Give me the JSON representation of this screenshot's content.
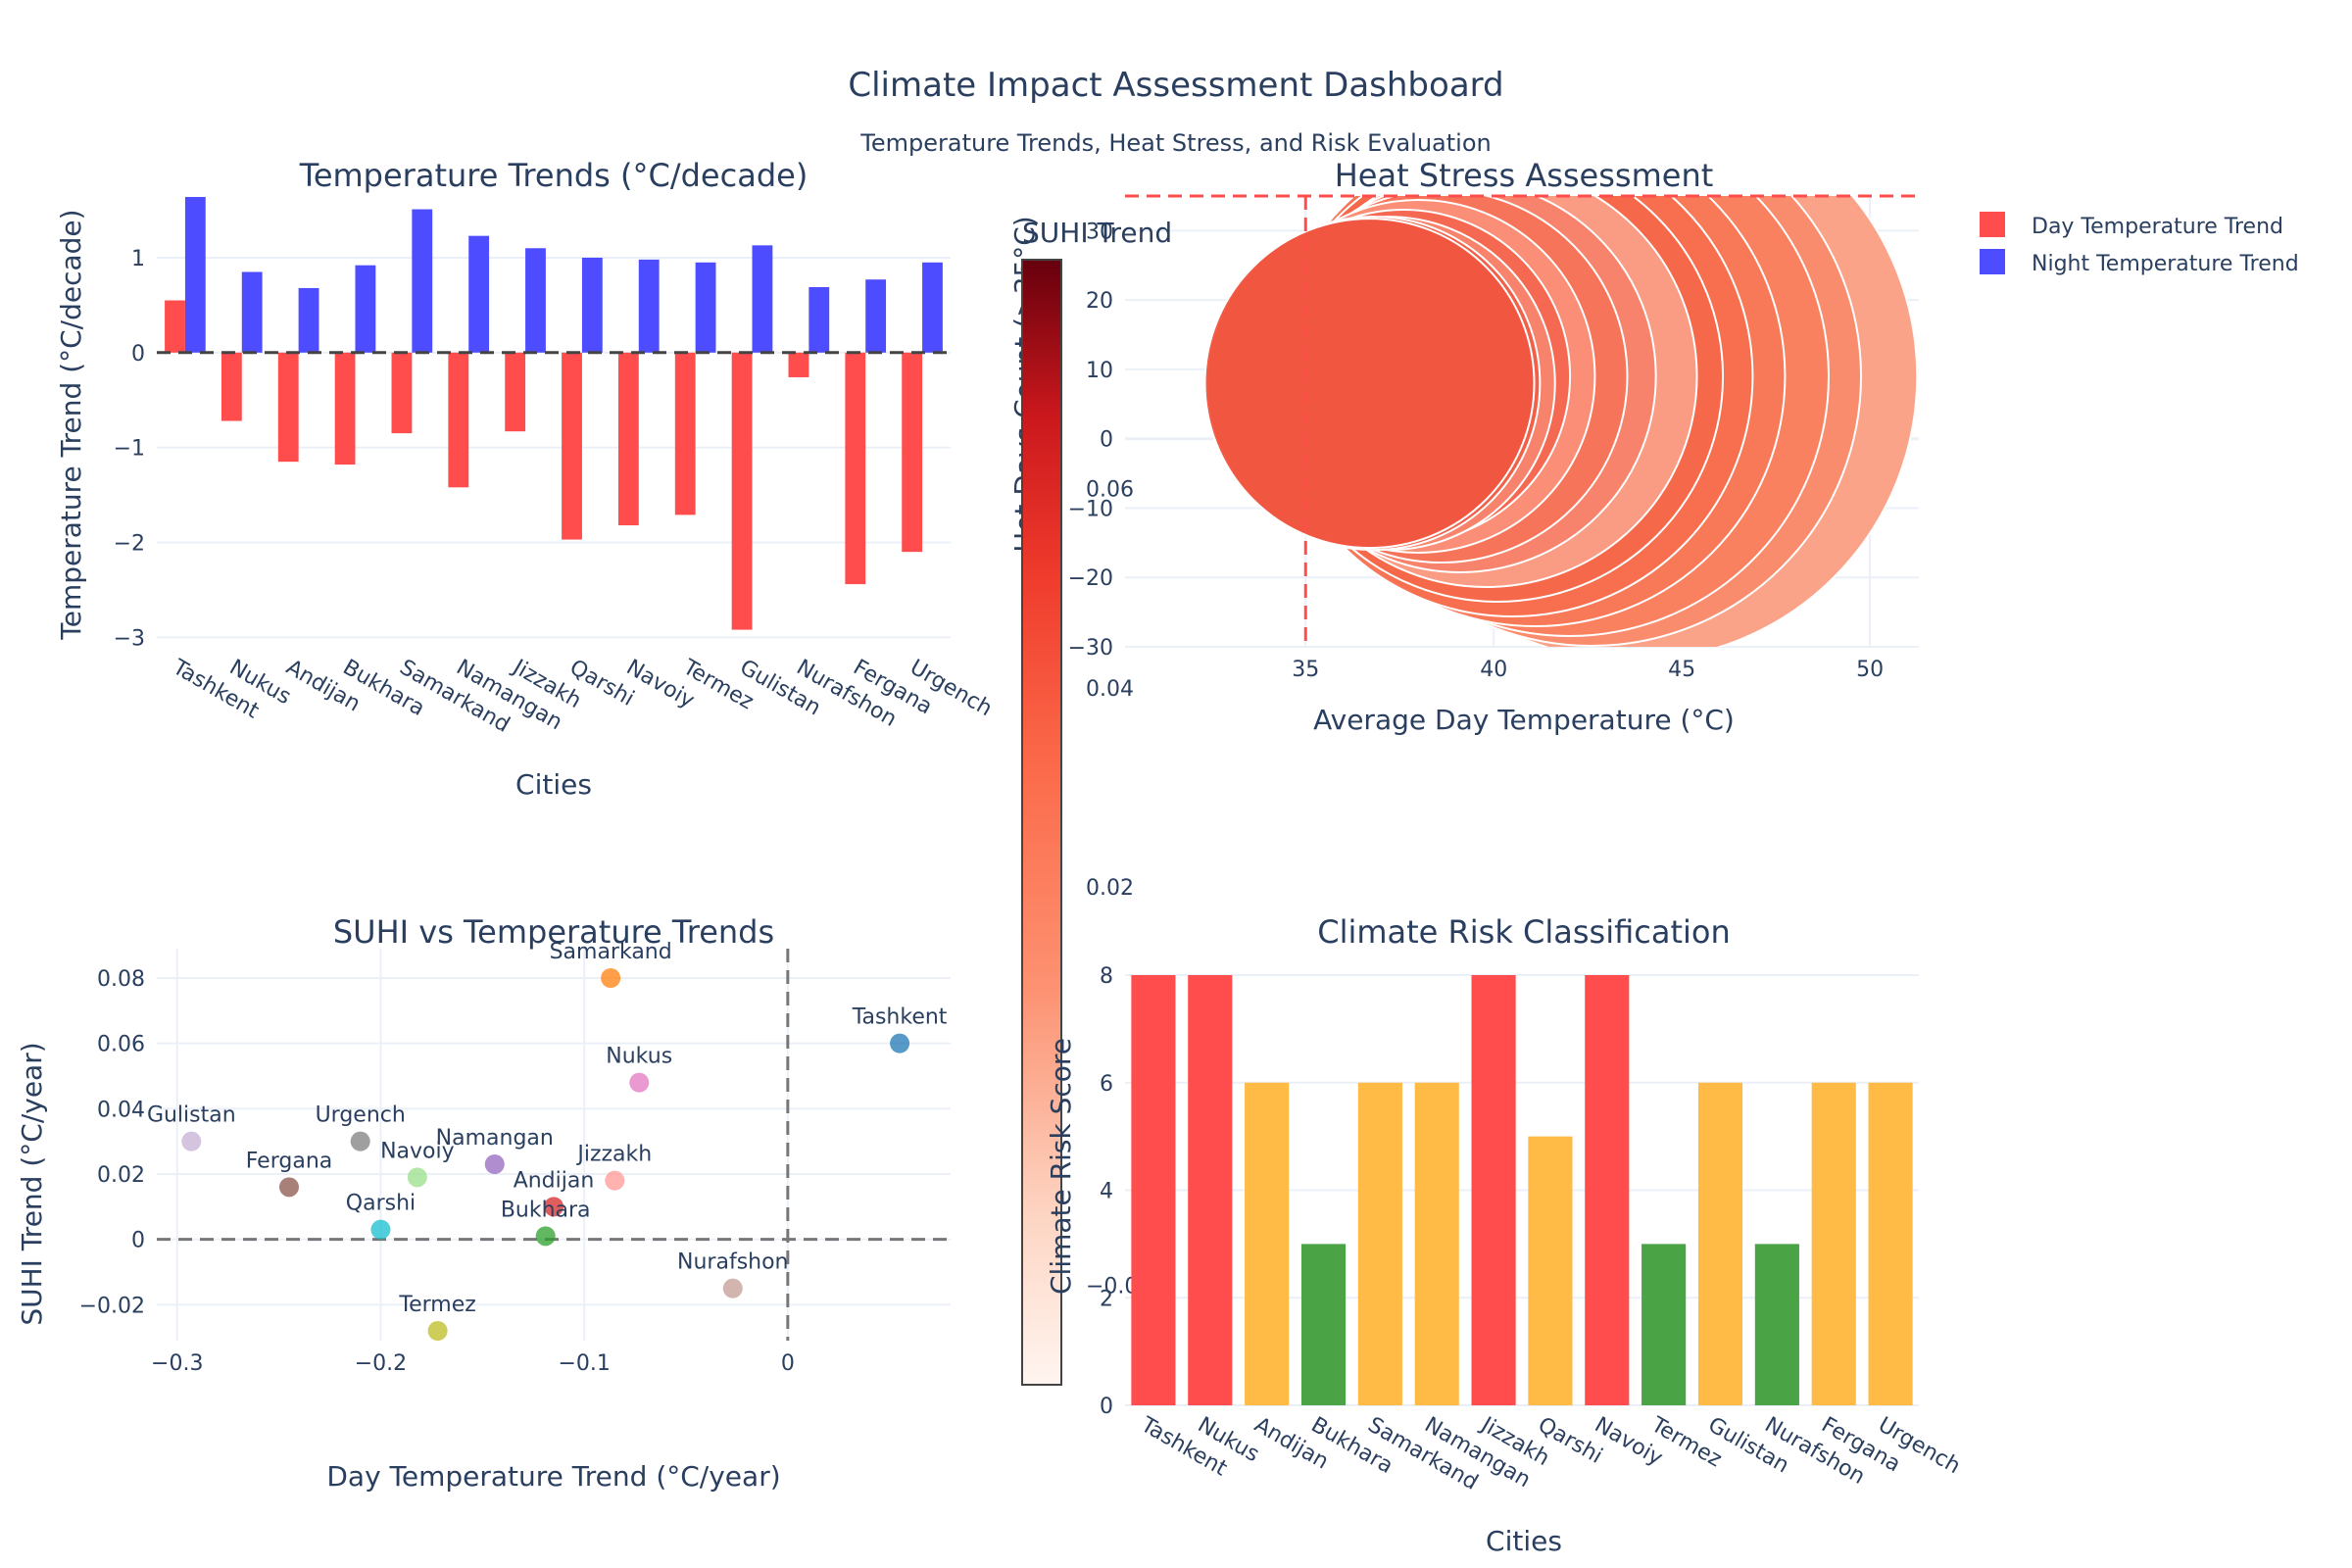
{
  "title": "Climate Impact Assessment Dashboard",
  "subtitle": "Temperature Trends, Heat Stress, and Risk Evaluation",
  "legend": {
    "items": [
      {
        "label": "Day Temperature Trend",
        "color": "#ff4d4d"
      },
      {
        "label": "Night Temperature Trend",
        "color": "#4d4dff"
      }
    ]
  },
  "chart_data": [
    {
      "type": "bar",
      "title": "Temperature Trends (°C/decade)",
      "xlabel": "Cities",
      "ylabel": "Temperature Trend (°C/decade)",
      "ylim": [
        -3.1,
        1.65
      ],
      "yticks": [
        1,
        0,
        -1,
        -2,
        -3
      ],
      "ytick_labels": [
        "1",
        "0",
        "−1",
        "−2",
        "−3"
      ],
      "categories": [
        "Tashkent",
        "Nukus",
        "Andijan",
        "Bukhara",
        "Samarkand",
        "Namangan",
        "Jizzakh",
        "Qarshi",
        "Navoiy",
        "Termez",
        "Gulistan",
        "Nurafshon",
        "Fergana",
        "Urgench"
      ],
      "series": [
        {
          "name": "Day Temperature Trend",
          "color": "#ff4d4d",
          "values": [
            0.55,
            -0.72,
            -1.15,
            -1.18,
            -0.85,
            -1.42,
            -0.83,
            -1.97,
            -1.82,
            -1.71,
            -2.92,
            -0.26,
            -2.44,
            -2.1
          ]
        },
        {
          "name": "Night Temperature Trend",
          "color": "#4d4dff",
          "values": [
            1.64,
            0.85,
            0.68,
            0.92,
            1.51,
            1.23,
            1.1,
            1.0,
            0.98,
            0.95,
            1.13,
            0.69,
            0.77,
            0.95
          ]
        }
      ]
    },
    {
      "type": "scatter",
      "title": "Heat Stress Assessment",
      "xlabel": "Average Day Temperature (°C)",
      "ylabel": "Hot Days Count (>35°C)",
      "xticks": [
        35,
        40,
        45,
        50
      ],
      "yticks": [
        30,
        20,
        10,
        0,
        -10,
        -20,
        -30
      ],
      "ytick_labels": [
        "30",
        "20",
        "10",
        "0",
        "−10",
        "−20",
        "−30"
      ],
      "xlim": [
        30.2,
        51.3
      ],
      "ylim": [
        -30,
        35
      ],
      "threshold_x": 35,
      "threshold_y": 35,
      "points": [
        {
          "x": 43.7,
          "y": 9,
          "r": 290,
          "color": "#fb9e83"
        },
        {
          "x": 42.6,
          "y": 9,
          "r": 275,
          "color": "#fa8b6d"
        },
        {
          "x": 42.0,
          "y": 9,
          "r": 265,
          "color": "#f9815f"
        },
        {
          "x": 41.1,
          "y": 9,
          "r": 255,
          "color": "#f87857"
        },
        {
          "x": 40.5,
          "y": 9,
          "r": 245,
          "color": "#f76f4e"
        },
        {
          "x": 40.1,
          "y": 9,
          "r": 230,
          "color": "#f4684a"
        },
        {
          "x": 39.8,
          "y": 9,
          "r": 215,
          "color": "#fa9f86"
        },
        {
          "x": 39.1,
          "y": 9,
          "r": 200,
          "color": "#f8826a"
        },
        {
          "x": 38.6,
          "y": 9,
          "r": 190,
          "color": "#f57359"
        },
        {
          "x": 38.0,
          "y": 9,
          "r": 180,
          "color": "#fa8f78"
        },
        {
          "x": 37.6,
          "y": 9,
          "r": 170,
          "color": "#f46650"
        },
        {
          "x": 37.2,
          "y": 8,
          "r": 170,
          "color": "#f8856e"
        },
        {
          "x": 36.8,
          "y": 8,
          "r": 170,
          "color": "#f05e48"
        },
        {
          "x": 36.7,
          "y": 8,
          "r": 168,
          "color": "#f05540"
        }
      ]
    },
    {
      "type": "scatter",
      "title": "SUHI vs Temperature Trends",
      "xlabel": "Day Temperature Trend (°C/year)",
      "ylabel": "SUHI Trend (°C/year)",
      "xticks": [
        -0.3,
        -0.2,
        -0.1,
        0
      ],
      "xtick_labels": [
        "−0.3",
        "−0.2",
        "−0.1",
        "0"
      ],
      "yticks": [
        0.08,
        0.06,
        0.04,
        0.02,
        0,
        -0.02
      ],
      "ytick_labels": [
        "0.08",
        "0.06",
        "0.04",
        "0.02",
        "0",
        "−0.02"
      ],
      "xlim": [
        -0.31,
        0.08
      ],
      "ylim": [
        -0.031,
        0.089
      ],
      "points": [
        {
          "label": "Tashkent",
          "x": 0.055,
          "y": 0.06,
          "color": "#1f77b4"
        },
        {
          "label": "Nukus",
          "x": -0.073,
          "y": 0.048,
          "color": "#e377c2"
        },
        {
          "label": "Andijan",
          "x": -0.115,
          "y": 0.01,
          "color": "#d62728"
        },
        {
          "label": "Bukhara",
          "x": -0.119,
          "y": 0.001,
          "color": "#2ca02c"
        },
        {
          "label": "Samarkand",
          "x": -0.087,
          "y": 0.08,
          "color": "#ff7f0e"
        },
        {
          "label": "Namangan",
          "x": -0.144,
          "y": 0.023,
          "color": "#9467bd"
        },
        {
          "label": "Jizzakh",
          "x": -0.085,
          "y": 0.018,
          "color": "#ff9896"
        },
        {
          "label": "Qarshi",
          "x": -0.2,
          "y": 0.003,
          "color": "#17becf"
        },
        {
          "label": "Navoiy",
          "x": -0.182,
          "y": 0.019,
          "color": "#98df8a"
        },
        {
          "label": "Termez",
          "x": -0.172,
          "y": -0.028,
          "color": "#bcbd22"
        },
        {
          "label": "Gulistan",
          "x": -0.293,
          "y": 0.03,
          "color": "#c5b0d5"
        },
        {
          "label": "Nurafshon",
          "x": -0.027,
          "y": -0.015,
          "color": "#c49c94"
        },
        {
          "label": "Fergana",
          "x": -0.245,
          "y": 0.016,
          "color": "#8c564b"
        },
        {
          "label": "Urgench",
          "x": -0.21,
          "y": 0.03,
          "color": "#7f7f7f"
        }
      ]
    },
    {
      "type": "bar",
      "title": "Climate Risk Classification",
      "xlabel": "Cities",
      "ylabel": "Climate Risk Score",
      "ylim": [
        0,
        8
      ],
      "yticks": [
        0,
        2,
        4,
        6,
        8
      ],
      "categories": [
        "Tashkent",
        "Nukus",
        "Andijan",
        "Bukhara",
        "Samarkand",
        "Namangan",
        "Jizzakh",
        "Qarshi",
        "Navoiy",
        "Termez",
        "Gulistan",
        "Nurafshon",
        "Fergana",
        "Urgench"
      ],
      "values": [
        8,
        8,
        6,
        3,
        6,
        6,
        8,
        5,
        8,
        3,
        6,
        3,
        6,
        6
      ],
      "colors": [
        "#ff4d4d",
        "#ff4d4d",
        "#ffbb45",
        "#4aa344",
        "#ffbb45",
        "#ffbb45",
        "#ff4d4d",
        "#ffbb45",
        "#ff4d4d",
        "#4aa344",
        "#ffbb45",
        "#4aa344",
        "#ffbb45",
        "#ffbb45"
      ]
    }
  ],
  "colorbar": {
    "title": "SUHI Trend",
    "ticks": [
      "0.06",
      "0.04",
      "0.02",
      "−0.02"
    ],
    "tick_values": [
      0.06,
      0.04,
      0.02,
      -0.02
    ],
    "range": [
      -0.03,
      0.083
    ]
  }
}
